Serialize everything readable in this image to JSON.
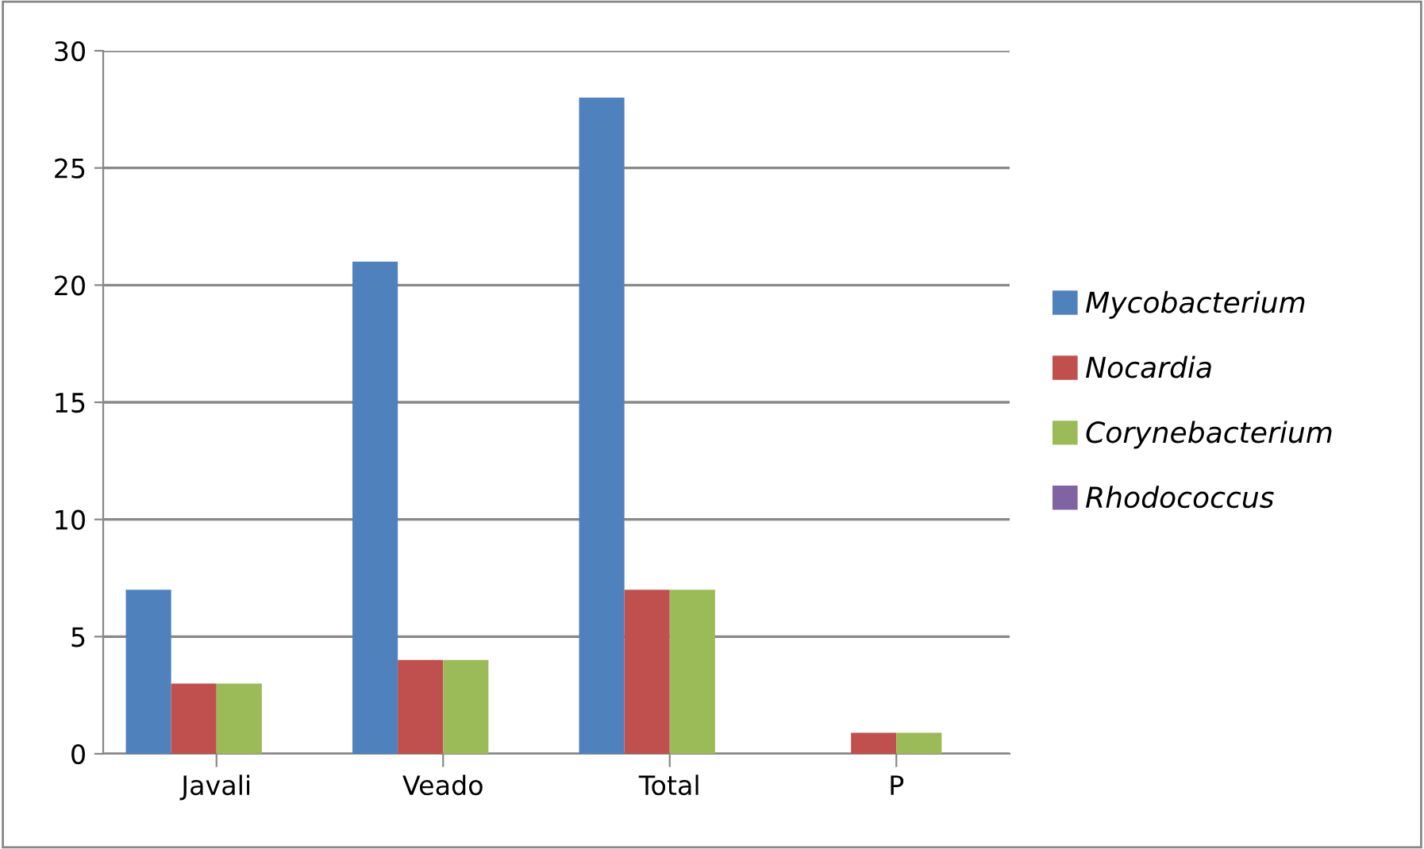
{
  "chart_data": {
    "type": "bar",
    "categories": [
      "Javali",
      "Veado",
      "Total",
      "P"
    ],
    "series": [
      {
        "name": "Mycobacterium",
        "color": "#4f81bd",
        "values": [
          7,
          21,
          28,
          0
        ]
      },
      {
        "name": "Nocardia",
        "color": "#c0504d",
        "values": [
          3,
          4,
          7,
          0.9
        ]
      },
      {
        "name": "Corynebacterium",
        "color": "#9bbb59",
        "values": [
          3,
          4,
          7,
          0.9
        ]
      },
      {
        "name": "Rhodococcus",
        "color": "#8064a2",
        "values": [
          0,
          0,
          0,
          0
        ]
      }
    ],
    "ylim": [
      0,
      30
    ],
    "yticks": [
      0,
      5,
      10,
      15,
      20,
      25,
      30
    ],
    "grid": "y",
    "legend": "right"
  }
}
